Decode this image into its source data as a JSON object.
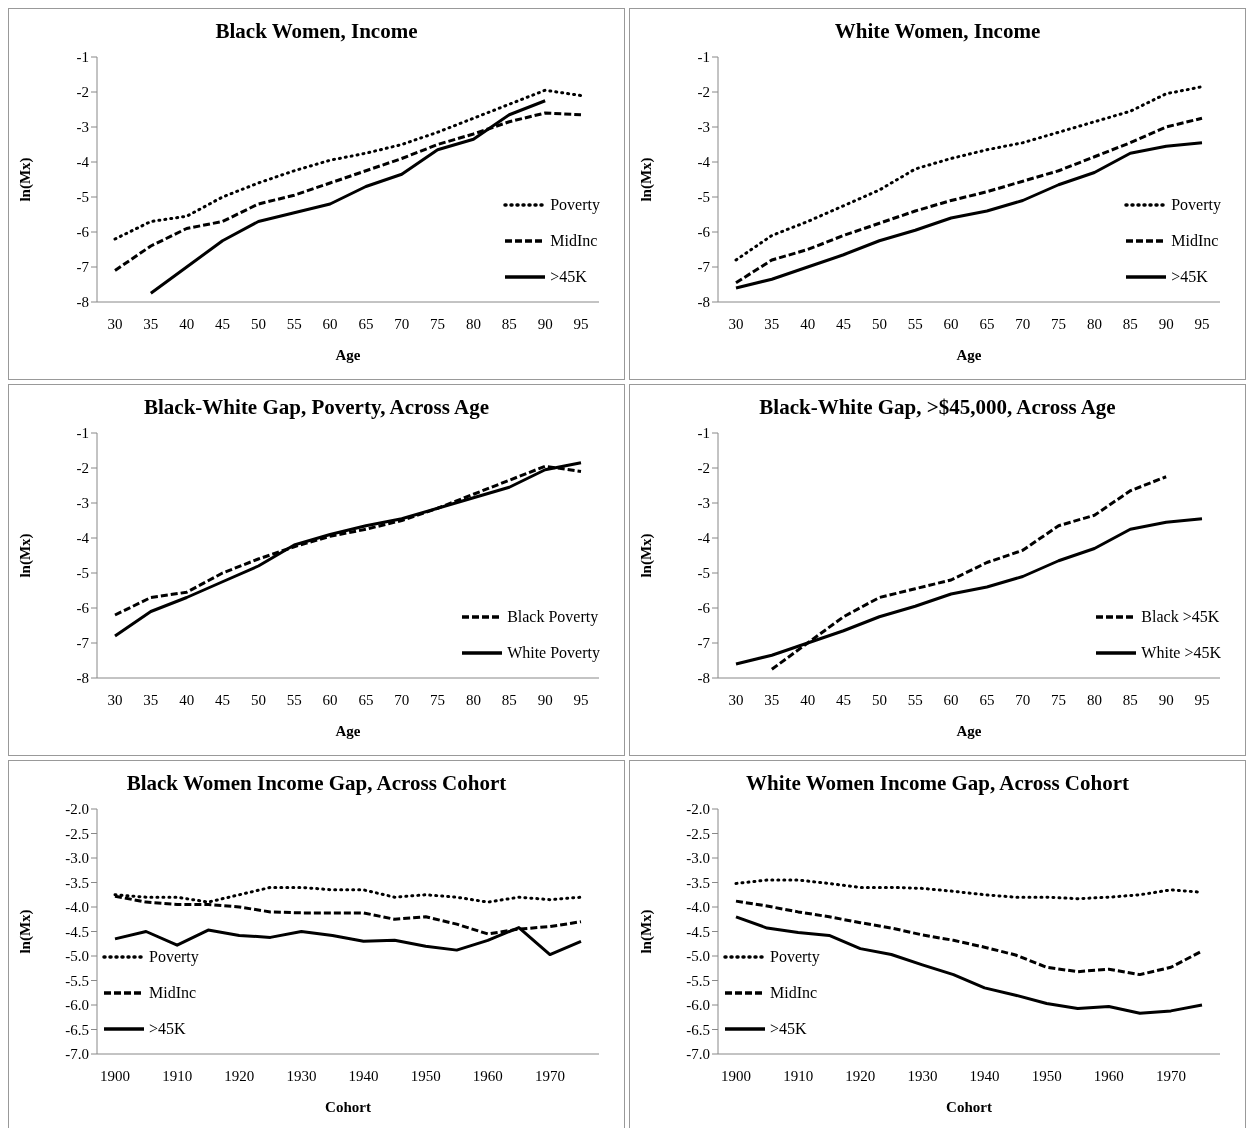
{
  "chart_data": [
    {
      "type": "line",
      "title": "Black Women, Income",
      "xlabel": "Age",
      "ylabel": "ln(Mx)",
      "categories": [
        "30",
        "35",
        "40",
        "45",
        "50",
        "55",
        "60",
        "65",
        "70",
        "75",
        "80",
        "85",
        "90",
        "95"
      ],
      "ylim": [
        -8,
        -1
      ],
      "yticks": [
        -8,
        -7,
        -6,
        -5,
        -4,
        -3,
        -2,
        -1
      ],
      "legend": "bottom right",
      "series": [
        {
          "name": "Poverty",
          "color": "#000000",
          "line_style": "dotted",
          "values": [
            -6.2,
            -5.7,
            -5.55,
            -5.0,
            -4.6,
            -4.25,
            -3.95,
            -3.75,
            -3.5,
            -3.15,
            -2.75,
            -2.35,
            -1.95,
            -2.1
          ]
        },
        {
          "name": "MidInc",
          "color": "#000000",
          "line_style": "dashed",
          "values": [
            -7.1,
            -6.4,
            -5.9,
            -5.7,
            -5.2,
            -4.95,
            -4.6,
            -4.25,
            -3.9,
            -3.5,
            -3.2,
            -2.85,
            -2.6,
            -2.65
          ]
        },
        {
          "name": ">45K",
          "color": "#000000",
          "line_style": "solid",
          "values": [
            null,
            -7.75,
            -7.0,
            -6.25,
            -5.7,
            -5.45,
            -5.2,
            -4.7,
            -4.35,
            -3.65,
            -3.35,
            -2.65,
            -2.25,
            null
          ]
        }
      ]
    },
    {
      "type": "line",
      "title": "White Women, Income",
      "xlabel": "Age",
      "ylabel": "ln(Mx)",
      "categories": [
        "30",
        "35",
        "40",
        "45",
        "50",
        "55",
        "60",
        "65",
        "70",
        "75",
        "80",
        "85",
        "90",
        "95"
      ],
      "ylim": [
        -8,
        -1
      ],
      "yticks": [
        -8,
        -7,
        -6,
        -5,
        -4,
        -3,
        -2,
        -1
      ],
      "legend": "bottom right",
      "series": [
        {
          "name": "Poverty",
          "color": "#000000",
          "line_style": "dotted",
          "values": [
            -6.8,
            -6.1,
            -5.7,
            -5.25,
            -4.8,
            -4.2,
            -3.9,
            -3.65,
            -3.45,
            -3.15,
            -2.85,
            -2.55,
            -2.05,
            -1.85
          ]
        },
        {
          "name": "MidInc",
          "color": "#000000",
          "line_style": "dashed",
          "values": [
            -7.45,
            -6.8,
            -6.5,
            -6.1,
            -5.75,
            -5.4,
            -5.1,
            -4.85,
            -4.55,
            -4.25,
            -3.85,
            -3.45,
            -3.0,
            -2.75
          ]
        },
        {
          "name": ">45K",
          "color": "#000000",
          "line_style": "solid",
          "values": [
            -7.6,
            -7.35,
            -7.0,
            -6.65,
            -6.25,
            -5.95,
            -5.6,
            -5.4,
            -5.1,
            -4.65,
            -4.3,
            -3.75,
            -3.55,
            -3.45
          ]
        }
      ]
    },
    {
      "type": "line",
      "title": "Black-White Gap, Poverty, Across Age",
      "xlabel": "Age",
      "ylabel": "ln(Mx)",
      "categories": [
        "30",
        "35",
        "40",
        "45",
        "50",
        "55",
        "60",
        "65",
        "70",
        "75",
        "80",
        "85",
        "90",
        "95"
      ],
      "ylim": [
        -8,
        -1
      ],
      "yticks": [
        -8,
        -7,
        -6,
        -5,
        -4,
        -3,
        -2,
        -1
      ],
      "legend": "bottom right",
      "series": [
        {
          "name": "Black Poverty",
          "color": "#000000",
          "line_style": "dashed",
          "values": [
            -6.2,
            -5.7,
            -5.55,
            -5.0,
            -4.6,
            -4.25,
            -3.95,
            -3.75,
            -3.5,
            -3.15,
            -2.75,
            -2.35,
            -1.95,
            -2.1
          ]
        },
        {
          "name": "White Poverty",
          "color": "#000000",
          "line_style": "solid",
          "values": [
            -6.8,
            -6.1,
            -5.7,
            -5.25,
            -4.8,
            -4.2,
            -3.9,
            -3.65,
            -3.45,
            -3.15,
            -2.85,
            -2.55,
            -2.05,
            -1.85
          ]
        }
      ]
    },
    {
      "type": "line",
      "title": "Black-White Gap, >$45,000, Across Age",
      "xlabel": "Age",
      "ylabel": "ln(Mx)",
      "categories": [
        "30",
        "35",
        "40",
        "45",
        "50",
        "55",
        "60",
        "65",
        "70",
        "75",
        "80",
        "85",
        "90",
        "95"
      ],
      "ylim": [
        -8,
        -1
      ],
      "yticks": [
        -8,
        -7,
        -6,
        -5,
        -4,
        -3,
        -2,
        -1
      ],
      "legend": "bottom right",
      "series": [
        {
          "name": "Black >45K",
          "color": "#000000",
          "line_style": "dashed",
          "values": [
            null,
            -7.75,
            -7.0,
            -6.25,
            -5.7,
            -5.45,
            -5.2,
            -4.7,
            -4.35,
            -3.65,
            -3.35,
            -2.65,
            -2.25,
            null
          ]
        },
        {
          "name": "White >45K",
          "color": "#000000",
          "line_style": "solid",
          "values": [
            -7.6,
            -7.35,
            -7.0,
            -6.65,
            -6.25,
            -5.95,
            -5.6,
            -5.4,
            -5.1,
            -4.65,
            -4.3,
            -3.75,
            -3.55,
            -3.45
          ]
        }
      ]
    },
    {
      "type": "line",
      "title": "Black Women Income Gap, Across Cohort",
      "xlabel": "Cohort",
      "ylabel": "ln(Mx)",
      "categories": [
        "1900",
        null,
        "1910",
        null,
        "1920",
        null,
        "1930",
        null,
        "1940",
        null,
        "1950",
        null,
        "1960",
        null,
        "1970",
        null
      ],
      "ylim": [
        -7,
        -2
      ],
      "yticks": [
        {
          "value": -7,
          "label": "-7.0"
        },
        {
          "value": -6.5,
          "label": "-6.5"
        },
        {
          "value": -6,
          "label": "-6.0"
        },
        {
          "value": -5.5,
          "label": "-5.5"
        },
        {
          "value": -5,
          "label": "-5.0"
        },
        {
          "value": -4.5,
          "label": "-4.5"
        },
        {
          "value": -4,
          "label": "-4.0"
        },
        {
          "value": -3.5,
          "label": "-3.5"
        },
        {
          "value": -3,
          "label": "-3.0"
        },
        {
          "value": -2.5,
          "label": "-2.5"
        },
        {
          "value": -2,
          "label": "-2.0"
        }
      ],
      "legend": "bottom left",
      "series": [
        {
          "name": "Poverty",
          "color": "#000000",
          "line_style": "dotted",
          "values": [
            -3.75,
            -3.8,
            -3.8,
            -3.9,
            -3.75,
            -3.6,
            -3.6,
            -3.65,
            -3.65,
            -3.8,
            -3.75,
            -3.8,
            -3.9,
            -3.8,
            -3.85,
            -3.8
          ]
        },
        {
          "name": "MidInc",
          "color": "#000000",
          "line_style": "dashed",
          "values": [
            -3.78,
            -3.9,
            -3.95,
            -3.95,
            -4.0,
            -4.1,
            -4.12,
            -4.12,
            -4.12,
            -4.25,
            -4.2,
            -4.35,
            -4.55,
            -4.45,
            -4.4,
            -4.3
          ]
        },
        {
          "name": ">45K",
          "color": "#000000",
          "line_style": "solid",
          "values": [
            -4.65,
            -4.5,
            -4.78,
            -4.47,
            -4.58,
            -4.62,
            -4.5,
            -4.58,
            -4.7,
            -4.68,
            -4.8,
            -4.88,
            -4.68,
            -4.42,
            -4.97,
            -4.7
          ]
        }
      ]
    },
    {
      "type": "line",
      "title": "White Women Income Gap, Across Cohort",
      "xlabel": "Cohort",
      "ylabel": "ln(Mx)",
      "categories": [
        "1900",
        null,
        "1910",
        null,
        "1920",
        null,
        "1930",
        null,
        "1940",
        null,
        "1950",
        null,
        "1960",
        null,
        "1970",
        null
      ],
      "ylim": [
        -7,
        -2
      ],
      "yticks": [
        {
          "value": -7,
          "label": "-7.0"
        },
        {
          "value": -6.5,
          "label": "-6.5"
        },
        {
          "value": -6,
          "label": "-6.0"
        },
        {
          "value": -5.5,
          "label": "-5.5"
        },
        {
          "value": -5,
          "label": "-5.0"
        },
        {
          "value": -4.5,
          "label": "-4.5"
        },
        {
          "value": -4,
          "label": "-4.0"
        },
        {
          "value": -3.5,
          "label": "-3.5"
        },
        {
          "value": -3,
          "label": "-3.0"
        },
        {
          "value": -2.5,
          "label": "-2.5"
        },
        {
          "value": -2,
          "label": "-2.0"
        }
      ],
      "legend": "bottom left",
      "series": [
        {
          "name": "Poverty",
          "color": "#000000",
          "line_style": "dotted",
          "values": [
            -3.52,
            -3.45,
            -3.45,
            -3.52,
            -3.6,
            -3.6,
            -3.62,
            -3.68,
            -3.75,
            -3.8,
            -3.8,
            -3.83,
            -3.8,
            -3.75,
            -3.65,
            -3.7
          ]
        },
        {
          "name": "MidInc",
          "color": "#000000",
          "line_style": "dashed",
          "values": [
            -3.88,
            -3.98,
            -4.1,
            -4.2,
            -4.32,
            -4.43,
            -4.57,
            -4.68,
            -4.82,
            -4.98,
            -5.23,
            -5.32,
            -5.27,
            -5.38,
            -5.23,
            -4.9
          ]
        },
        {
          "name": ">45K",
          "color": "#000000",
          "line_style": "solid",
          "values": [
            -4.2,
            -4.43,
            -4.52,
            -4.58,
            -4.85,
            -4.97,
            -5.18,
            -5.38,
            -5.65,
            -5.8,
            -5.97,
            -6.07,
            -6.03,
            -6.17,
            -6.12,
            -6.0
          ]
        }
      ]
    }
  ]
}
